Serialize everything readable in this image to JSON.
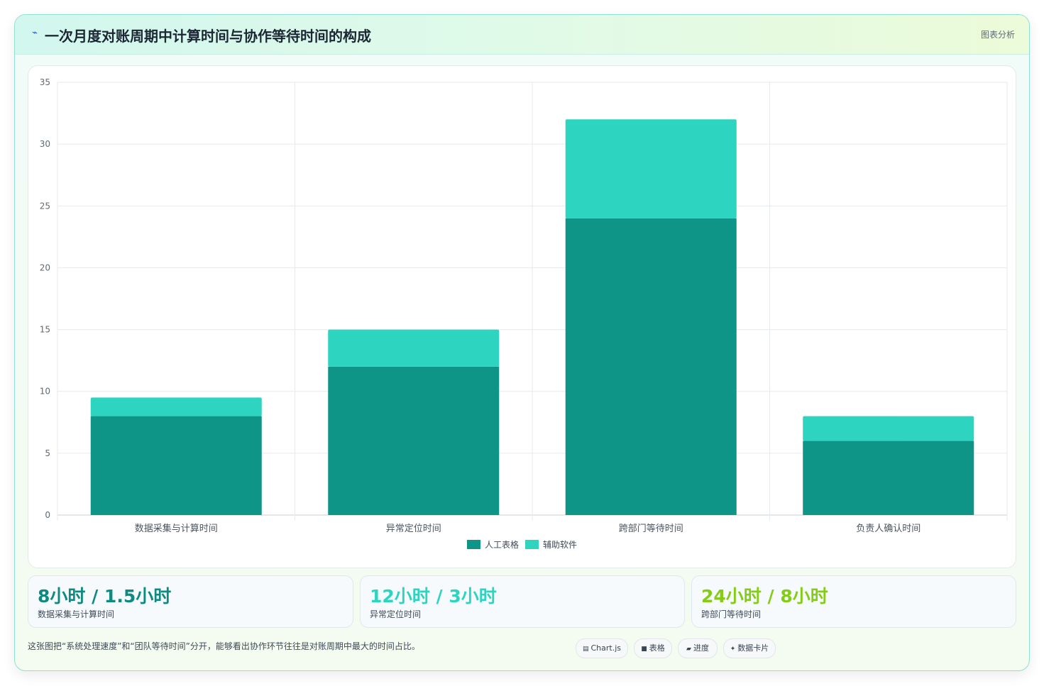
{
  "header": {
    "icon": "bolt-icon",
    "title": "一次月度对账周期中计算时间与协作等待时间的构成",
    "tag": "图表分析"
  },
  "chart_data": {
    "type": "bar",
    "stacked": true,
    "categories": [
      "数据采集与计算时间",
      "异常定位时间",
      "跨部门等待时间",
      "负责人确认时间"
    ],
    "series": [
      {
        "name": "人工表格",
        "values": [
          8,
          12,
          24,
          6
        ],
        "color": "#0f9488"
      },
      {
        "name": "辅助软件",
        "values": [
          1.5,
          3,
          8,
          2
        ],
        "color": "#2dd4bf"
      }
    ],
    "ylim": [
      0,
      35
    ],
    "yticks": [
      0,
      5,
      10,
      15,
      20,
      25,
      30,
      35
    ],
    "grid": true,
    "legend": "bottom"
  },
  "stats": [
    {
      "value": "8小时 / 1.5小时",
      "label": "数据采集与计算时间",
      "color": "#0f8a80"
    },
    {
      "value": "12小时 / 3小时",
      "label": "异常定位时间",
      "color": "#2dd4bf"
    },
    {
      "value": "24小时 / 8小时",
      "label": "跨部门等待时间",
      "color": "#84cc16"
    }
  ],
  "footnote": "这张图把“系统处理速度”和“团队等待时间”分开，能够看出协作环节往往是对账周期中最大的时间占比。",
  "chips": [
    {
      "icon": "chart-icon",
      "glyph": "▤",
      "label": "Chart.js"
    },
    {
      "icon": "table-icon",
      "glyph": "■",
      "label": "表格"
    },
    {
      "icon": "progress-icon",
      "glyph": "▰",
      "label": "进度"
    },
    {
      "icon": "data-card-icon",
      "glyph": "✦",
      "label": "数据卡片"
    }
  ]
}
